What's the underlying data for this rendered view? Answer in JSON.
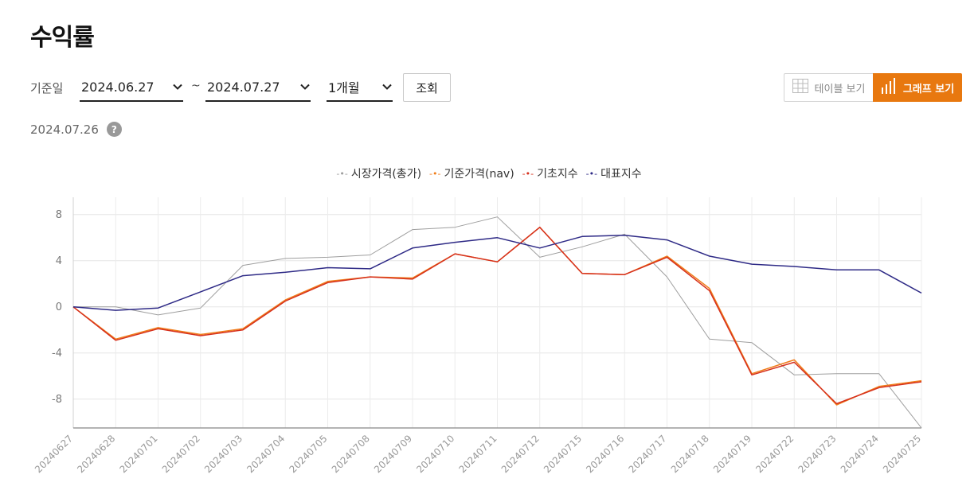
{
  "page": {
    "title": "수익률"
  },
  "filters": {
    "label": "기준일",
    "from_date": "2024.06.27",
    "separator": "~",
    "to_date": "2024.07.27",
    "period": "1개월",
    "search_label": "조회"
  },
  "view_toggle": {
    "table_label": "테이블 보기",
    "graph_label": "그래프 보기",
    "active": "graph",
    "accent_color": "#e8780f"
  },
  "as_of": {
    "date": "2024.07.26",
    "help_icon": "?"
  },
  "chart_data": {
    "type": "line",
    "categories": [
      "20240627",
      "20240628",
      "20240701",
      "20240702",
      "20240703",
      "20240704",
      "20240705",
      "20240708",
      "20240709",
      "20240710",
      "20240711",
      "20240712",
      "20240715",
      "20240716",
      "20240717",
      "20240718",
      "20240719",
      "20240722",
      "20240723",
      "20240724",
      "20240725"
    ],
    "ylim": [
      -10.5,
      9.5
    ],
    "yticks": [
      8,
      4,
      0,
      -4,
      -8
    ],
    "grid": true,
    "legend_position": "top-center",
    "series": [
      {
        "name": "시장가격(총가)",
        "color": "#9e9e9e",
        "values": [
          0,
          0,
          -0.7,
          -0.1,
          3.6,
          4.2,
          4.3,
          4.5,
          6.7,
          6.9,
          7.8,
          4.3,
          5.2,
          6.3,
          2.6,
          -2.8,
          -3.1,
          -5.9,
          -5.8,
          -5.8,
          -10.5
        ]
      },
      {
        "name": "기준가격(nav)",
        "color": "#f07d1a",
        "values": [
          0,
          -2.8,
          -1.8,
          -2.4,
          -1.9,
          0.6,
          2.2,
          2.6,
          2.5,
          4.6,
          3.9,
          6.9,
          2.9,
          2.8,
          4.4,
          1.6,
          -5.8,
          -4.6,
          -8.5,
          -6.9,
          -6.4
        ]
      },
      {
        "name": "기초지수",
        "color": "#d6301d",
        "values": [
          0,
          -2.9,
          -1.9,
          -2.5,
          -2.0,
          0.5,
          2.1,
          2.6,
          2.4,
          4.6,
          3.9,
          6.9,
          2.9,
          2.8,
          4.3,
          1.4,
          -5.9,
          -4.8,
          -8.4,
          -7.0,
          -6.5
        ]
      },
      {
        "name": "대표지수",
        "color": "#2e2a86",
        "values": [
          0,
          -0.3,
          -0.1,
          1.3,
          2.7,
          3.0,
          3.4,
          3.3,
          5.1,
          5.6,
          6.0,
          5.1,
          6.1,
          6.2,
          5.8,
          4.4,
          3.7,
          3.5,
          3.2,
          3.2,
          1.2
        ]
      }
    ]
  }
}
